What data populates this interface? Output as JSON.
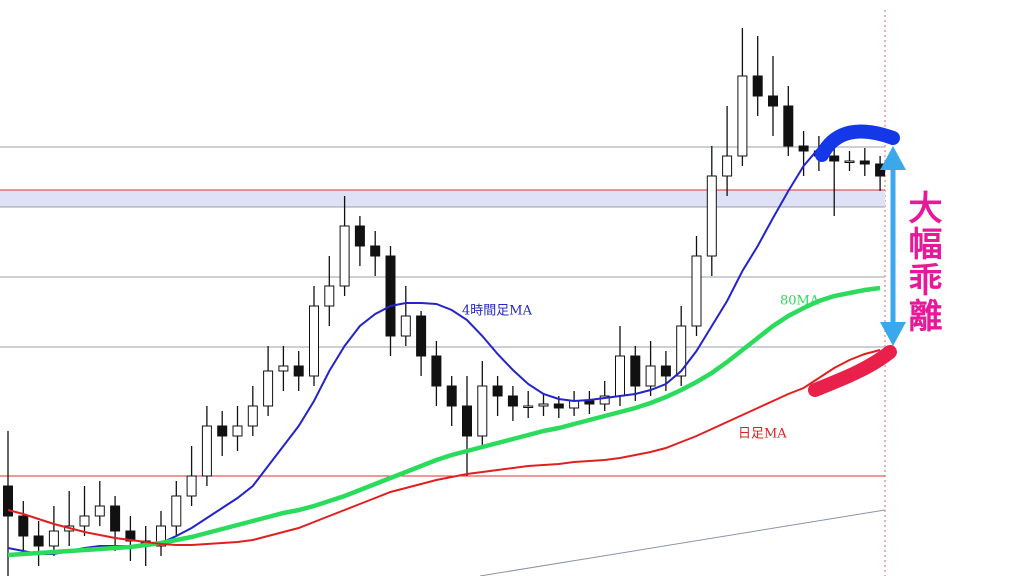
{
  "chart_data": {
    "type": "candlestick",
    "ylim": [
      0,
      576
    ],
    "open": [
      90,
      60,
      40,
      30,
      45,
      50,
      60,
      70,
      45,
      35,
      30,
      50,
      80,
      100,
      150,
      140,
      150,
      170,
      205,
      210,
      200,
      270,
      290,
      350,
      330,
      320,
      240,
      260,
      220,
      190,
      170,
      140,
      190,
      180,
      170,
      170,
      172,
      168,
      175,
      172,
      180,
      220,
      190,
      210,
      200,
      250,
      320,
      400,
      420,
      500,
      480,
      470,
      430,
      425,
      420,
      415,
      415,
      412
    ],
    "high": [
      145,
      75,
      55,
      70,
      85,
      90,
      95,
      80,
      60,
      50,
      65,
      95,
      130,
      170,
      165,
      170,
      190,
      230,
      230,
      225,
      290,
      320,
      380,
      360,
      345,
      330,
      290,
      265,
      235,
      200,
      200,
      215,
      200,
      190,
      185,
      182,
      180,
      185,
      185,
      195,
      250,
      230,
      235,
      225,
      270,
      340,
      430,
      470,
      548,
      540,
      520,
      490,
      445,
      440,
      430,
      425,
      428,
      420
    ],
    "low": [
      0,
      25,
      10,
      20,
      30,
      40,
      50,
      25,
      15,
      10,
      20,
      40,
      70,
      90,
      120,
      125,
      140,
      160,
      185,
      185,
      190,
      250,
      280,
      310,
      300,
      220,
      230,
      200,
      170,
      150,
      100,
      130,
      160,
      155,
      158,
      160,
      158,
      160,
      162,
      165,
      170,
      175,
      180,
      185,
      190,
      240,
      300,
      380,
      410,
      460,
      440,
      420,
      400,
      405,
      360,
      405,
      400,
      385
    ],
    "close": [
      60,
      40,
      30,
      45,
      50,
      60,
      70,
      45,
      35,
      30,
      50,
      80,
      100,
      150,
      140,
      150,
      170,
      205,
      210,
      200,
      270,
      290,
      350,
      330,
      320,
      240,
      260,
      220,
      190,
      170,
      140,
      190,
      180,
      170,
      170,
      172,
      168,
      175,
      172,
      180,
      220,
      190,
      210,
      200,
      250,
      320,
      400,
      420,
      500,
      480,
      470,
      430,
      425,
      420,
      415,
      415,
      412,
      400
    ],
    "series": [
      {
        "name": "4時間足MA",
        "color": "#2424c8",
        "values": [
          28,
          25,
          22,
          22,
          25,
          28,
          30,
          30,
          30,
          31,
          33,
          40,
          48,
          58,
          68,
          78,
          90,
          110,
          130,
          150,
          175,
          205,
          230,
          250,
          262,
          270,
          273,
          273,
          272,
          266,
          256,
          240,
          222,
          206,
          192,
          182,
          177,
          175,
          176,
          178,
          180,
          182,
          186,
          192,
          205,
          225,
          250,
          275,
          305,
          330,
          358,
          385,
          410,
          428,
          436,
          438,
          440,
          440
        ]
      },
      {
        "name": "80MA",
        "color": "#2bdc5c",
        "values": [
          21,
          22,
          23,
          24,
          25,
          26,
          27,
          28,
          29,
          31,
          33,
          36,
          39,
          43,
          47,
          51,
          55,
          59,
          63,
          66,
          70,
          75,
          80,
          86,
          92,
          98,
          104,
          110,
          116,
          121,
          125,
          129,
          133,
          137,
          141,
          145,
          148,
          152,
          156,
          160,
          164,
          168,
          173,
          179,
          186,
          194,
          203,
          214,
          226,
          238,
          250,
          260,
          268,
          275,
          280,
          283,
          286,
          288
        ]
      },
      {
        "name": "日足MA",
        "color": "#e02020",
        "values": [
          66,
          62,
          57,
          52,
          48,
          44,
          41,
          38,
          36,
          34,
          32,
          31,
          31,
          32,
          33,
          34,
          36,
          40,
          44,
          48,
          54,
          60,
          66,
          72,
          78,
          84,
          88,
          92,
          96,
          99,
          102,
          104,
          106,
          108,
          110,
          111,
          112,
          114,
          115,
          116,
          118,
          121,
          124,
          128,
          134,
          140,
          147,
          154,
          161,
          168,
          175,
          182,
          188,
          198,
          208,
          216,
          222,
          226
        ]
      }
    ],
    "levels": [
      {
        "value": 429,
        "color": "#9aa0a8"
      },
      {
        "value": 386,
        "color": "#e03030"
      },
      {
        "value": 369,
        "color": "#9aa0a8"
      },
      {
        "value": 299,
        "color": "#9aa0a8"
      },
      {
        "value": 229,
        "color": "#9aa0a8"
      },
      {
        "value": 100,
        "color": "#e03030"
      }
    ],
    "band": {
      "range": [
        369,
        386
      ],
      "color": "#dfe2f6"
    },
    "annotation": "大幅乖離"
  }
}
